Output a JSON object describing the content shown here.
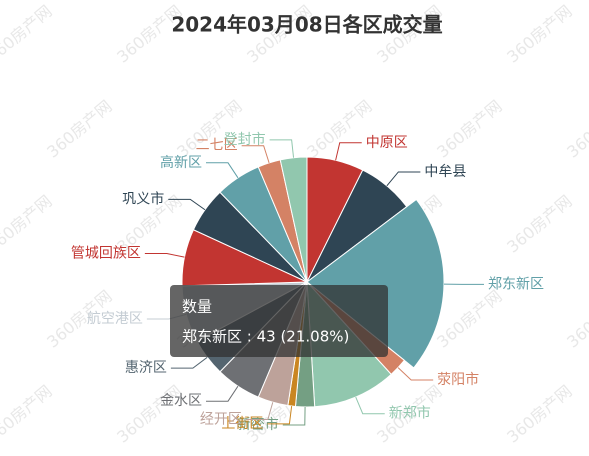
{
  "chart_data": {
    "type": "pie",
    "title": "2024年03月08日各区成交量",
    "watermark": "360房产网",
    "categories": [
      "中原区",
      "中牟县",
      "郑东新区",
      "荥阳市",
      "新郑市",
      "新密市",
      "上街区",
      "经开区",
      "金水区",
      "惠济区",
      "航空港区",
      "管城回族区",
      "巩义市",
      "高新区",
      "二七区",
      "登封市"
    ],
    "values": [
      15,
      15,
      43,
      5,
      22,
      5,
      2,
      8,
      12,
      10,
      15,
      15,
      12,
      12,
      6,
      7
    ],
    "colors": [
      "#c23531",
      "#2f4554",
      "#61a0a8",
      "#d48265",
      "#91c7ae",
      "#749f83",
      "#ca8622",
      "#bda29a",
      "#6e7074",
      "#546570",
      "#c4ccd3",
      "#c23531",
      "#2f4554",
      "#61a0a8",
      "#d48265",
      "#91c7ae"
    ],
    "highlight": 2,
    "tooltip": {
      "title": "数量",
      "label": "郑东新区 : 43 (21.08%)"
    }
  }
}
